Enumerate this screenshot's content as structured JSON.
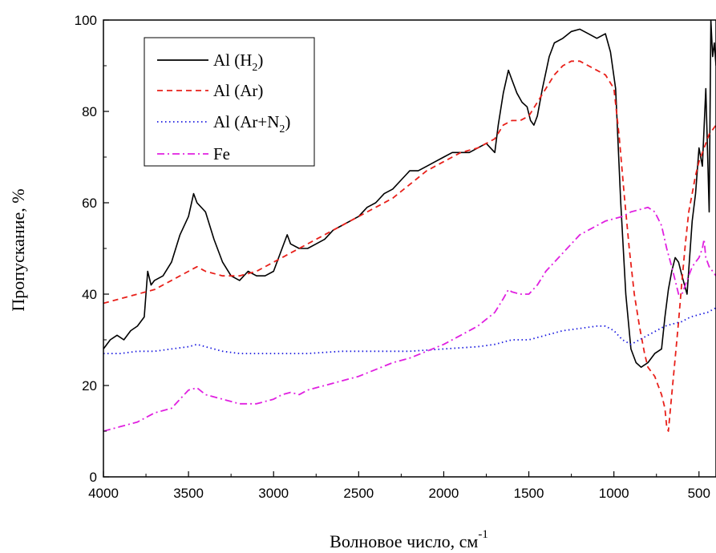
{
  "chart_data": {
    "type": "line",
    "title": "",
    "xlabel": "Волновое число, см",
    "xlabel_sup": "-1",
    "ylabel": "Пропускание, %",
    "xlim": [
      4000,
      400
    ],
    "ylim": [
      0,
      100
    ],
    "x_reversed": true,
    "xticks": [
      "4000",
      "3500",
      "3000",
      "2500",
      "2000",
      "1500",
      "1000",
      "500"
    ],
    "yticks": [
      "0",
      "20",
      "40",
      "60",
      "80",
      "100"
    ],
    "grid": false,
    "legend_position": "top-left",
    "legend": {
      "entries": [
        {
          "pre": "Al (H",
          "sub": "2",
          "post": ")"
        },
        {
          "pre": "Al (Ar)",
          "sub": "",
          "post": ""
        },
        {
          "pre": "Al (Ar+N",
          "sub": "2",
          "post": ")"
        },
        {
          "pre": "Fe",
          "sub": "",
          "post": ""
        }
      ]
    },
    "series": [
      {
        "name": "Al (H2)",
        "color": "#000000",
        "dash": "solid",
        "points": [
          [
            4000,
            28
          ],
          [
            3960,
            30
          ],
          [
            3920,
            31
          ],
          [
            3880,
            30
          ],
          [
            3840,
            32
          ],
          [
            3800,
            33
          ],
          [
            3760,
            35
          ],
          [
            3740,
            45
          ],
          [
            3720,
            42
          ],
          [
            3700,
            43
          ],
          [
            3650,
            44
          ],
          [
            3600,
            47
          ],
          [
            3550,
            53
          ],
          [
            3500,
            57
          ],
          [
            3470,
            62
          ],
          [
            3450,
            60
          ],
          [
            3400,
            58
          ],
          [
            3350,
            52
          ],
          [
            3300,
            47
          ],
          [
            3250,
            44
          ],
          [
            3200,
            43
          ],
          [
            3150,
            45
          ],
          [
            3100,
            44
          ],
          [
            3050,
            44
          ],
          [
            3000,
            45
          ],
          [
            2950,
            50
          ],
          [
            2920,
            53
          ],
          [
            2900,
            51
          ],
          [
            2850,
            50
          ],
          [
            2800,
            50
          ],
          [
            2750,
            51
          ],
          [
            2700,
            52
          ],
          [
            2650,
            54
          ],
          [
            2600,
            55
          ],
          [
            2550,
            56
          ],
          [
            2500,
            57
          ],
          [
            2450,
            59
          ],
          [
            2400,
            60
          ],
          [
            2350,
            62
          ],
          [
            2300,
            63
          ],
          [
            2250,
            65
          ],
          [
            2200,
            67
          ],
          [
            2150,
            67
          ],
          [
            2100,
            68
          ],
          [
            2050,
            69
          ],
          [
            2000,
            70
          ],
          [
            1950,
            71
          ],
          [
            1900,
            71
          ],
          [
            1850,
            71
          ],
          [
            1800,
            72
          ],
          [
            1750,
            73
          ],
          [
            1700,
            71
          ],
          [
            1680,
            77
          ],
          [
            1650,
            84
          ],
          [
            1620,
            89
          ],
          [
            1600,
            87
          ],
          [
            1570,
            84
          ],
          [
            1540,
            82
          ],
          [
            1510,
            81
          ],
          [
            1490,
            78
          ],
          [
            1470,
            77
          ],
          [
            1450,
            79
          ],
          [
            1420,
            85
          ],
          [
            1380,
            92
          ],
          [
            1350,
            95
          ],
          [
            1300,
            96
          ],
          [
            1250,
            97.5
          ],
          [
            1200,
            98
          ],
          [
            1150,
            97
          ],
          [
            1100,
            96
          ],
          [
            1050,
            97
          ],
          [
            1020,
            93
          ],
          [
            990,
            85
          ],
          [
            960,
            60
          ],
          [
            930,
            40
          ],
          [
            900,
            28
          ],
          [
            870,
            25
          ],
          [
            840,
            24
          ],
          [
            800,
            25
          ],
          [
            760,
            27
          ],
          [
            720,
            28
          ],
          [
            700,
            35
          ],
          [
            680,
            41
          ],
          [
            660,
            45
          ],
          [
            640,
            48
          ],
          [
            620,
            47
          ],
          [
            600,
            44
          ],
          [
            570,
            40
          ],
          [
            540,
            56
          ],
          [
            520,
            62
          ],
          [
            500,
            72
          ],
          [
            480,
            68
          ],
          [
            460,
            85
          ],
          [
            440,
            58
          ],
          [
            430,
            100
          ],
          [
            420,
            92
          ],
          [
            410,
            95
          ],
          [
            400,
            90
          ]
        ]
      },
      {
        "name": "Al (Ar)",
        "color": "#e8201a",
        "dash": "dashed",
        "points": [
          [
            4000,
            38
          ],
          [
            3900,
            39
          ],
          [
            3800,
            40
          ],
          [
            3700,
            41
          ],
          [
            3600,
            43
          ],
          [
            3500,
            45
          ],
          [
            3450,
            46
          ],
          [
            3400,
            45
          ],
          [
            3300,
            44
          ],
          [
            3200,
            44
          ],
          [
            3100,
            45
          ],
          [
            3000,
            47
          ],
          [
            2900,
            49
          ],
          [
            2800,
            51
          ],
          [
            2700,
            53
          ],
          [
            2600,
            55
          ],
          [
            2500,
            57
          ],
          [
            2400,
            59
          ],
          [
            2300,
            61
          ],
          [
            2200,
            64
          ],
          [
            2100,
            67
          ],
          [
            2000,
            69
          ],
          [
            1900,
            71
          ],
          [
            1800,
            72
          ],
          [
            1700,
            74
          ],
          [
            1650,
            77
          ],
          [
            1600,
            78
          ],
          [
            1550,
            78
          ],
          [
            1500,
            79
          ],
          [
            1450,
            82
          ],
          [
            1400,
            85
          ],
          [
            1350,
            88
          ],
          [
            1300,
            90
          ],
          [
            1250,
            91
          ],
          [
            1200,
            91
          ],
          [
            1150,
            90
          ],
          [
            1100,
            89
          ],
          [
            1050,
            88
          ],
          [
            1000,
            85
          ],
          [
            970,
            75
          ],
          [
            940,
            62
          ],
          [
            910,
            50
          ],
          [
            880,
            40
          ],
          [
            850,
            33
          ],
          [
            820,
            27
          ],
          [
            800,
            24
          ],
          [
            780,
            23
          ],
          [
            760,
            22
          ],
          [
            740,
            20
          ],
          [
            720,
            18
          ],
          [
            700,
            15
          ],
          [
            690,
            11
          ],
          [
            680,
            10
          ],
          [
            660,
            18
          ],
          [
            640,
            26
          ],
          [
            620,
            34
          ],
          [
            600,
            43
          ],
          [
            580,
            51
          ],
          [
            560,
            58
          ],
          [
            540,
            62
          ],
          [
            520,
            66
          ],
          [
            500,
            69
          ],
          [
            480,
            71
          ],
          [
            460,
            73
          ],
          [
            440,
            75
          ],
          [
            420,
            76
          ],
          [
            400,
            77
          ]
        ]
      },
      {
        "name": "Al (Ar+N2)",
        "color": "#1a1ae0",
        "dash": "dotted",
        "points": [
          [
            4000,
            27
          ],
          [
            3900,
            27
          ],
          [
            3800,
            27.5
          ],
          [
            3700,
            27.5
          ],
          [
            3600,
            28
          ],
          [
            3500,
            28.5
          ],
          [
            3450,
            29
          ],
          [
            3400,
            28.5
          ],
          [
            3300,
            27.5
          ],
          [
            3200,
            27
          ],
          [
            3100,
            27
          ],
          [
            3000,
            27
          ],
          [
            2800,
            27
          ],
          [
            2600,
            27.5
          ],
          [
            2400,
            27.5
          ],
          [
            2200,
            27.5
          ],
          [
            2000,
            28
          ],
          [
            1800,
            28.5
          ],
          [
            1700,
            29
          ],
          [
            1600,
            30
          ],
          [
            1500,
            30
          ],
          [
            1400,
            31
          ],
          [
            1300,
            32
          ],
          [
            1200,
            32.5
          ],
          [
            1100,
            33
          ],
          [
            1050,
            33
          ],
          [
            1000,
            32
          ],
          [
            950,
            30
          ],
          [
            900,
            29
          ],
          [
            850,
            30
          ],
          [
            800,
            31
          ],
          [
            750,
            32
          ],
          [
            700,
            33
          ],
          [
            650,
            33.5
          ],
          [
            600,
            34
          ],
          [
            550,
            35
          ],
          [
            500,
            35.5
          ],
          [
            450,
            36
          ],
          [
            400,
            37
          ]
        ]
      },
      {
        "name": "Fe",
        "color": "#e020e0",
        "dash": "dashdot",
        "points": [
          [
            4000,
            10
          ],
          [
            3900,
            11
          ],
          [
            3800,
            12
          ],
          [
            3700,
            14
          ],
          [
            3600,
            15
          ],
          [
            3550,
            17
          ],
          [
            3500,
            19
          ],
          [
            3450,
            19.5
          ],
          [
            3400,
            18
          ],
          [
            3300,
            17
          ],
          [
            3200,
            16
          ],
          [
            3100,
            16
          ],
          [
            3000,
            17
          ],
          [
            2950,
            18
          ],
          [
            2900,
            18.5
          ],
          [
            2850,
            18
          ],
          [
            2800,
            19
          ],
          [
            2700,
            20
          ],
          [
            2600,
            21
          ],
          [
            2500,
            22
          ],
          [
            2400,
            23.5
          ],
          [
            2300,
            25
          ],
          [
            2200,
            26
          ],
          [
            2100,
            27.5
          ],
          [
            2000,
            29
          ],
          [
            1900,
            31
          ],
          [
            1800,
            33
          ],
          [
            1700,
            36
          ],
          [
            1650,
            39
          ],
          [
            1620,
            41
          ],
          [
            1600,
            40.5
          ],
          [
            1550,
            40
          ],
          [
            1500,
            40
          ],
          [
            1450,
            42
          ],
          [
            1400,
            45
          ],
          [
            1350,
            47
          ],
          [
            1300,
            49
          ],
          [
            1250,
            51
          ],
          [
            1200,
            53
          ],
          [
            1150,
            54
          ],
          [
            1100,
            55
          ],
          [
            1050,
            56
          ],
          [
            1000,
            56.5
          ],
          [
            950,
            57
          ],
          [
            900,
            58
          ],
          [
            850,
            58.5
          ],
          [
            800,
            59
          ],
          [
            760,
            58
          ],
          [
            720,
            55
          ],
          [
            690,
            50
          ],
          [
            660,
            46
          ],
          [
            640,
            43
          ],
          [
            620,
            40
          ],
          [
            600,
            40
          ],
          [
            580,
            42
          ],
          [
            560,
            44
          ],
          [
            540,
            46
          ],
          [
            520,
            47
          ],
          [
            500,
            48
          ],
          [
            480,
            50
          ],
          [
            470,
            52
          ],
          [
            460,
            48
          ],
          [
            440,
            46
          ],
          [
            420,
            45
          ],
          [
            400,
            44
          ]
        ]
      }
    ]
  }
}
